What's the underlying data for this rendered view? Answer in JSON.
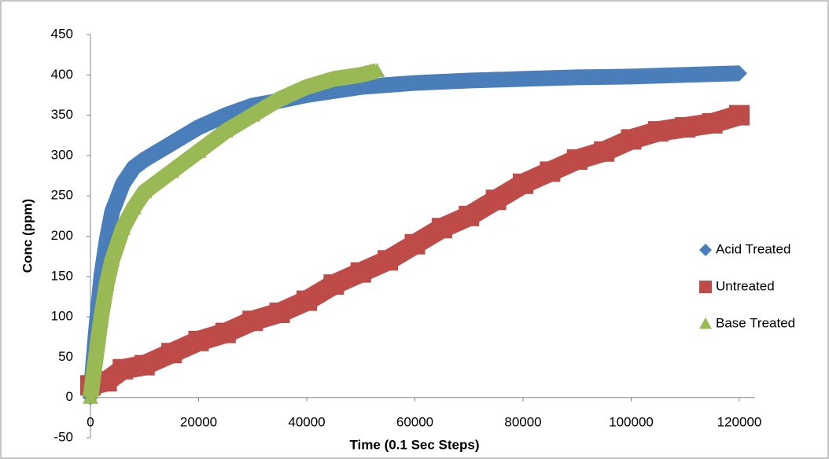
{
  "chart_data": {
    "type": "scatter",
    "x_label": "Time (0.1 Sec Steps)",
    "y_label": "Conc (ppm)",
    "xlim": [
      0,
      120000
    ],
    "xticks": [
      0,
      20000,
      40000,
      60000,
      80000,
      100000,
      120000
    ],
    "ylim": [
      -50,
      450
    ],
    "yticks": [
      -50,
      0,
      50,
      100,
      150,
      200,
      250,
      300,
      350,
      400,
      450
    ],
    "legend": "right",
    "series": [
      {
        "name": "Acid Treated",
        "color": "#4a7ebb",
        "marker": "diamond",
        "x": [
          0,
          1000,
          2000,
          3000,
          4000,
          6000,
          8000,
          10000,
          15000,
          20000,
          25000,
          30000,
          35000,
          40000,
          50000,
          60000,
          70000,
          80000,
          90000,
          100000,
          110000,
          120000
        ],
        "values": [
          0,
          80,
          150,
          195,
          230,
          265,
          285,
          295,
          315,
          335,
          350,
          362,
          368,
          375,
          385,
          390,
          393,
          395,
          397,
          398,
          400,
          402
        ]
      },
      {
        "name": "Untreated",
        "color": "#be4b48",
        "marker": "square",
        "x": [
          0,
          3000,
          6000,
          10000,
          15000,
          20000,
          25000,
          30000,
          35000,
          40000,
          45000,
          50000,
          55000,
          60000,
          65000,
          70000,
          75000,
          80000,
          85000,
          90000,
          95000,
          100000,
          105000,
          110000,
          115000,
          120000
        ],
        "values": [
          15,
          20,
          35,
          40,
          55,
          70,
          80,
          95,
          105,
          120,
          140,
          155,
          170,
          190,
          210,
          225,
          245,
          265,
          280,
          295,
          305,
          320,
          330,
          335,
          340,
          350
        ]
      },
      {
        "name": "Base Treated",
        "color": "#98b954",
        "marker": "triangle",
        "x": [
          0,
          1000,
          2000,
          3000,
          4000,
          6000,
          8000,
          10000,
          15000,
          20000,
          25000,
          30000,
          35000,
          40000,
          45000,
          50000,
          53000
        ],
        "values": [
          0,
          50,
          100,
          140,
          170,
          210,
          235,
          255,
          280,
          305,
          330,
          350,
          370,
          385,
          395,
          400,
          405
        ]
      }
    ]
  }
}
